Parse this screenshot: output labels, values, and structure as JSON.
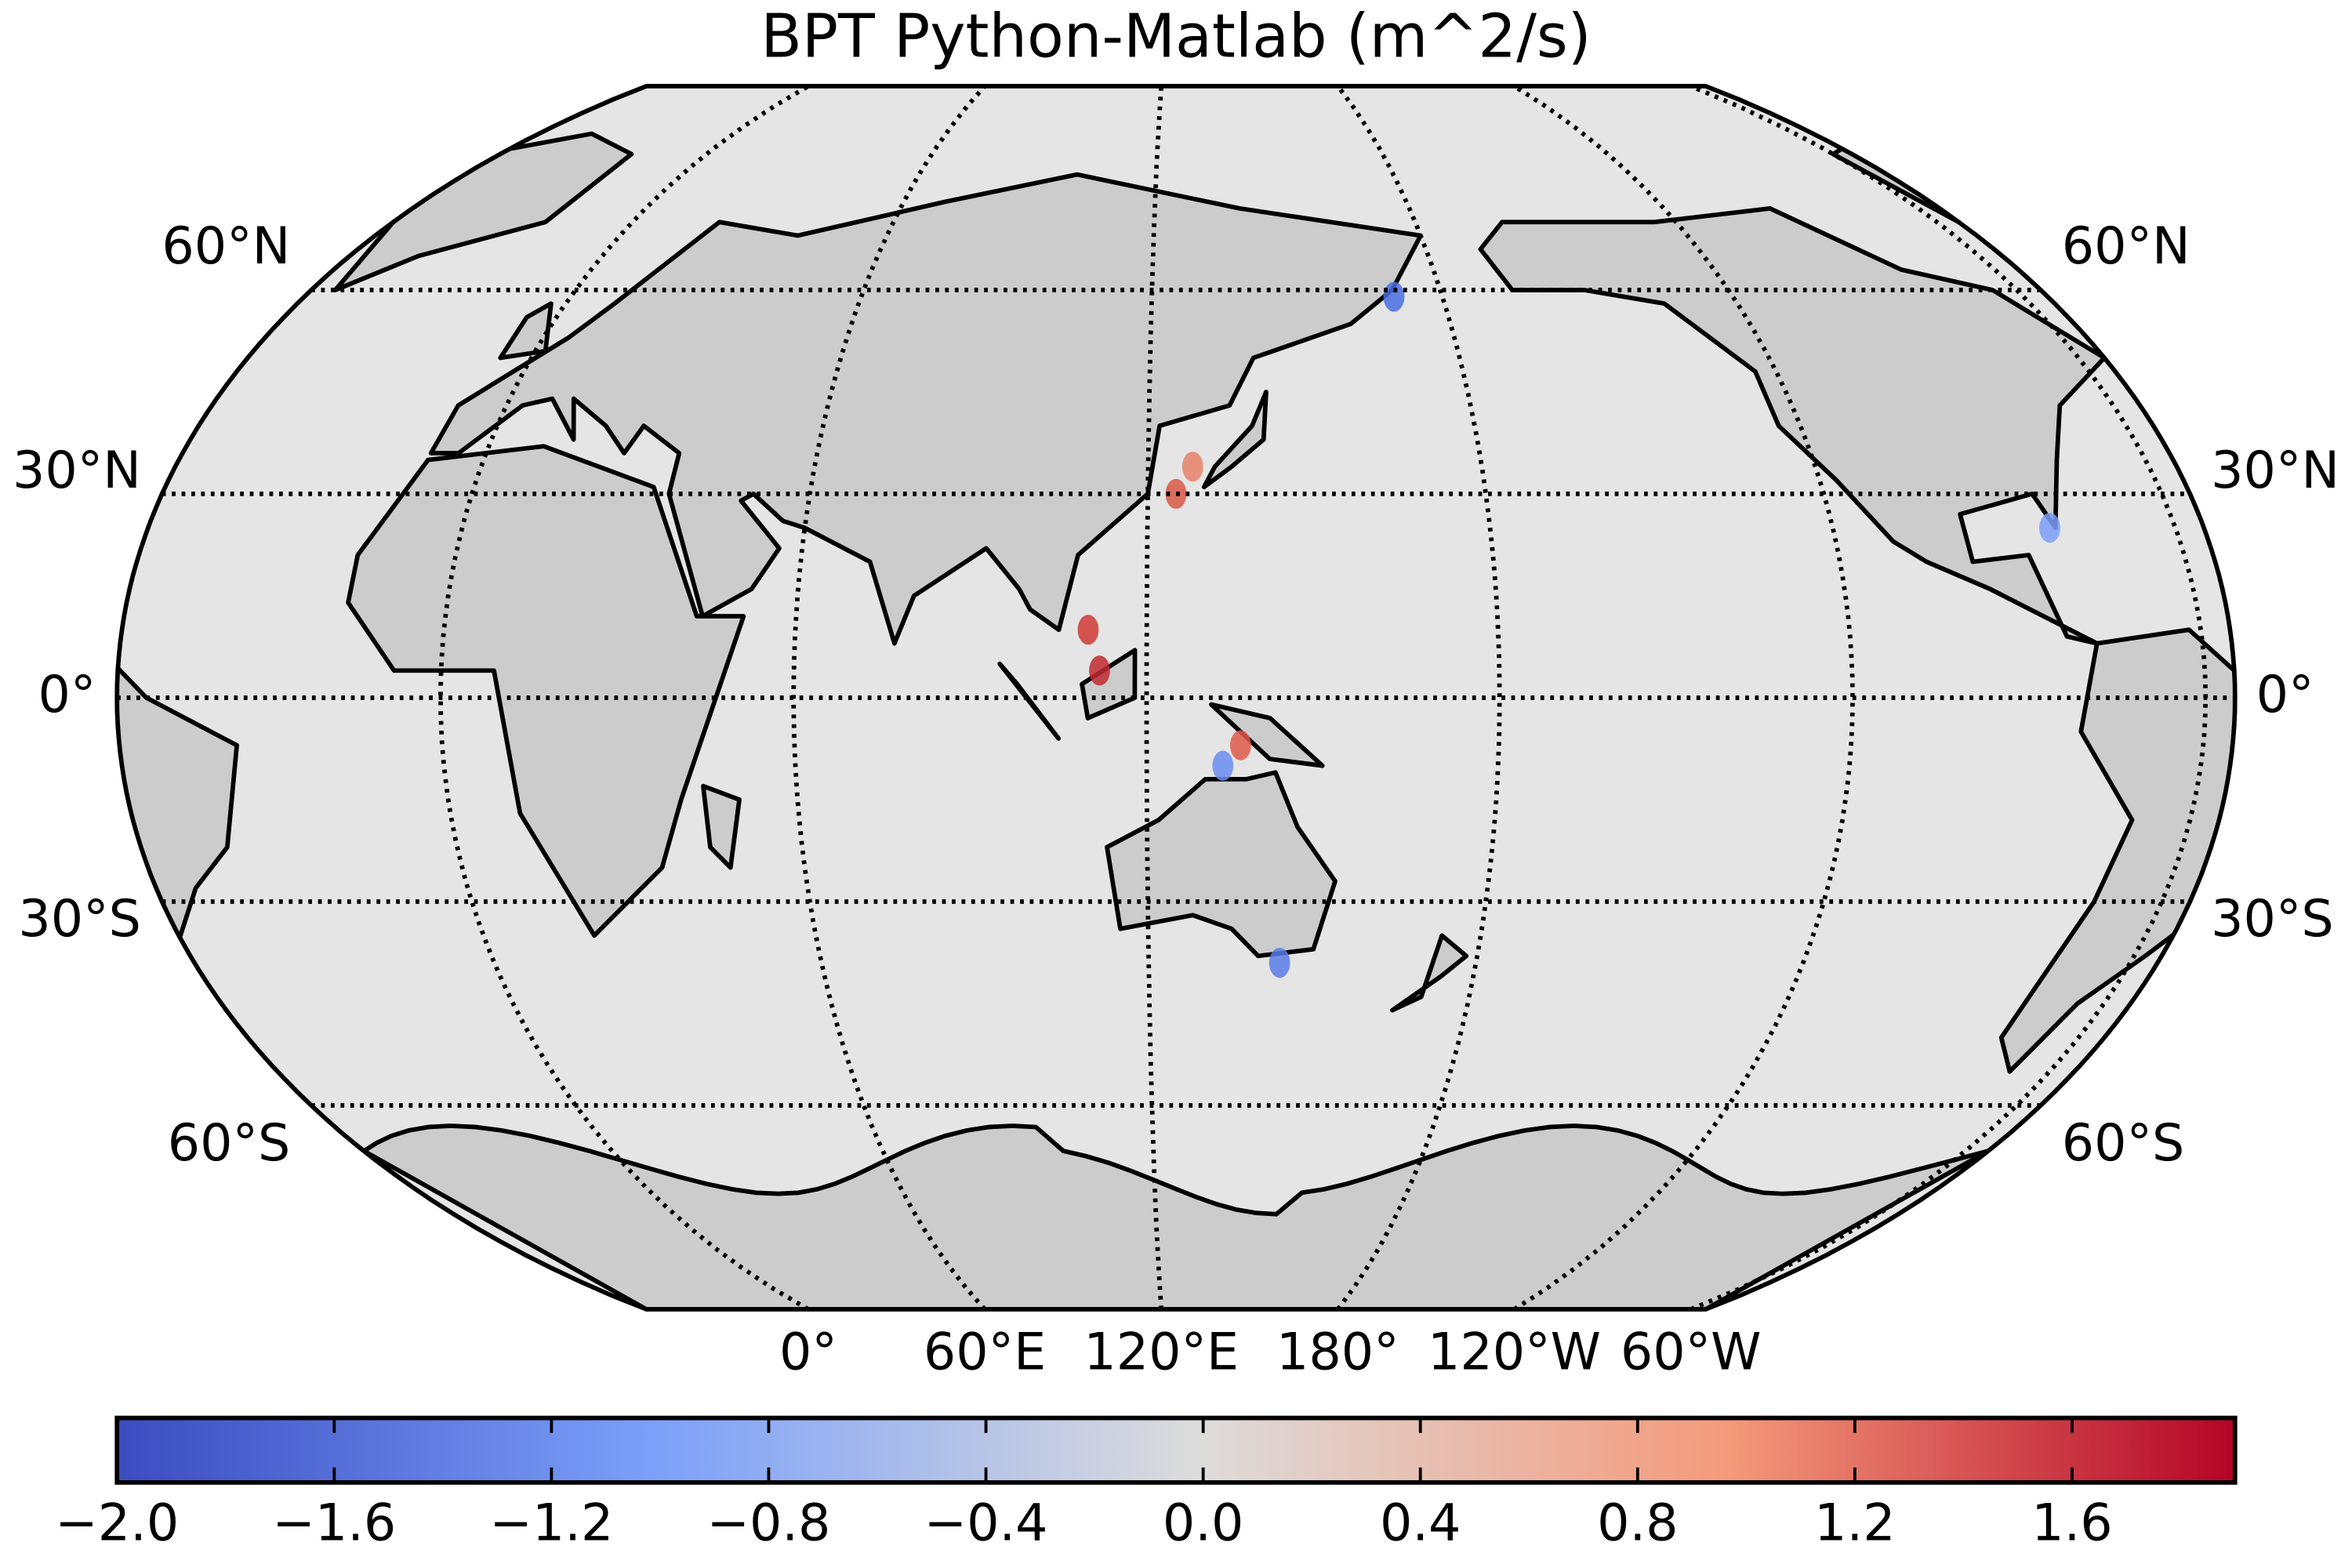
{
  "title": "BPT Python-Matlab (m^2/s)",
  "map": {
    "projection": "kavrayskiy7",
    "central_longitude": 125,
    "parallels": [
      {
        "value": 60,
        "label": "60°N"
      },
      {
        "value": 30,
        "label": "30°N"
      },
      {
        "value": 0,
        "label": "0°"
      },
      {
        "value": -30,
        "label": "30°S"
      },
      {
        "value": -60,
        "label": "60°S"
      }
    ],
    "meridians": [
      {
        "value": 0,
        "label": "0°"
      },
      {
        "value": 60,
        "label": "60°E"
      },
      {
        "value": 120,
        "label": "120°E"
      },
      {
        "value": 180,
        "label": "180°"
      },
      {
        "value": -120,
        "label": "120°W"
      },
      {
        "value": -60,
        "label": "60°W"
      }
    ]
  },
  "colorbar": {
    "clim": [
      -2.0,
      1.9
    ],
    "ticks": [
      {
        "value": -2.0,
        "label": "−2.0"
      },
      {
        "value": -1.6,
        "label": "−1.6"
      },
      {
        "value": -1.2,
        "label": "−1.2"
      },
      {
        "value": -0.8,
        "label": "−0.8"
      },
      {
        "value": -0.4,
        "label": "−0.4"
      },
      {
        "value": 0.0,
        "label": "0.0"
      },
      {
        "value": 0.4,
        "label": "0.4"
      },
      {
        "value": 0.8,
        "label": "0.8"
      },
      {
        "value": 1.2,
        "label": "1.2"
      },
      {
        "value": 1.6,
        "label": "1.6"
      }
    ]
  }
}
